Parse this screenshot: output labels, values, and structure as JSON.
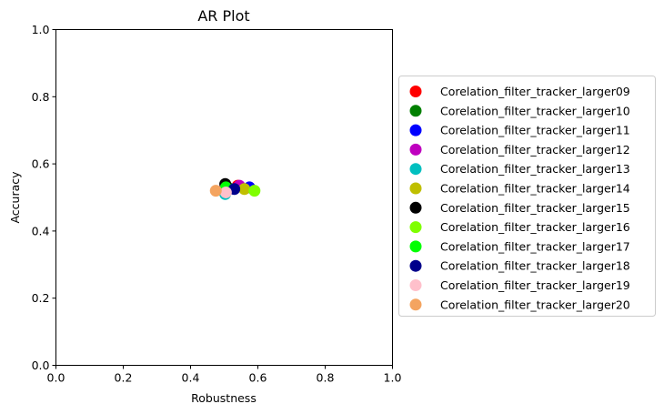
{
  "chart_data": {
    "type": "scatter",
    "title": "AR Plot",
    "xlabel": "Robustness",
    "ylabel": "Accuracy",
    "xlim": [
      0,
      1
    ],
    "ylim": [
      0,
      1
    ],
    "xticks": [
      "0.0",
      "0.2",
      "0.4",
      "0.6",
      "0.8",
      "1.0"
    ],
    "yticks": [
      "0.0",
      "0.2",
      "0.4",
      "0.6",
      "0.8",
      "1.0"
    ],
    "grid": false,
    "legend_position": "right, outside plot",
    "series": [
      {
        "name": "Corelation_filter_tracker_larger09",
        "color": "#ff0000",
        "x": 0.54,
        "y": 0.535
      },
      {
        "name": "Corelation_filter_tracker_larger10",
        "color": "#008000",
        "x": 0.51,
        "y": 0.53
      },
      {
        "name": "Corelation_filter_tracker_larger11",
        "color": "#0000ff",
        "x": 0.575,
        "y": 0.53
      },
      {
        "name": "Corelation_filter_tracker_larger12",
        "color": "#bf00bf",
        "x": 0.545,
        "y": 0.535
      },
      {
        "name": "Corelation_filter_tracker_larger13",
        "color": "#00bfbf",
        "x": 0.503,
        "y": 0.51
      },
      {
        "name": "Corelation_filter_tracker_larger14",
        "color": "#bfbf00",
        "x": 0.56,
        "y": 0.525
      },
      {
        "name": "Corelation_filter_tracker_larger15",
        "color": "#000000",
        "x": 0.503,
        "y": 0.54
      },
      {
        "name": "Corelation_filter_tracker_larger16",
        "color": "#7fff00",
        "x": 0.59,
        "y": 0.52
      },
      {
        "name": "Corelation_filter_tracker_larger17",
        "color": "#00ff00",
        "x": 0.505,
        "y": 0.53
      },
      {
        "name": "Corelation_filter_tracker_larger18",
        "color": "#00008b",
        "x": 0.53,
        "y": 0.525
      },
      {
        "name": "Corelation_filter_tracker_larger19",
        "color": "#ffc0cb",
        "x": 0.505,
        "y": 0.515
      },
      {
        "name": "Corelation_filter_tracker_larger20",
        "color": "#f4a460",
        "x": 0.475,
        "y": 0.52
      }
    ]
  }
}
